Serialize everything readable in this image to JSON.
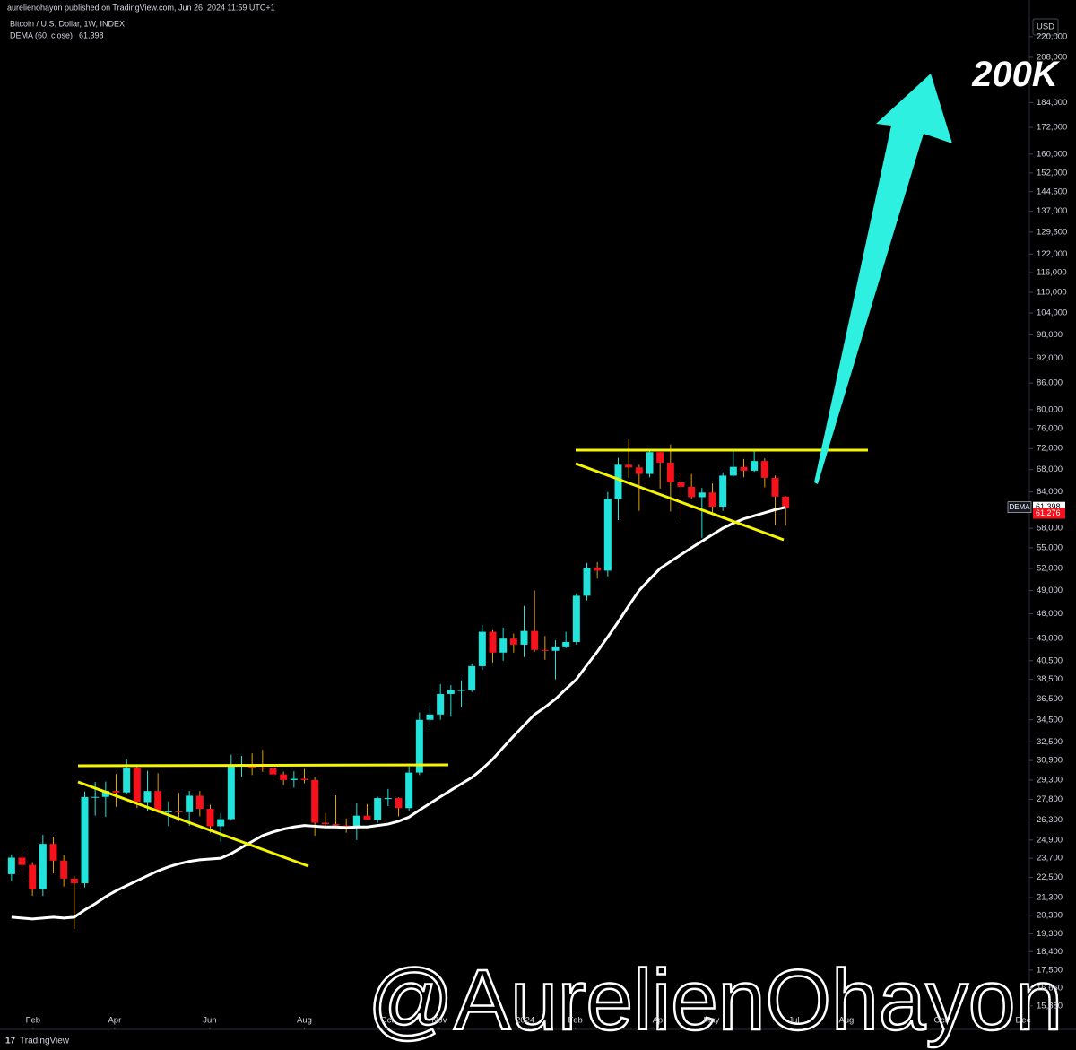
{
  "chart_data": {
    "type": "candlestick",
    "publisher": "aurelienohayon published on TradingView.com, Jun 26, 2024 11:59 UTC+1",
    "symbol": "Bitcoin / U.S. Dollar, 1W, INDEX",
    "indicator": "DEMA (60, close)",
    "currency": "USD",
    "annotation": "200K",
    "watermark": "@AurelienOhayon",
    "brand": "TradingView",
    "log_scale": true,
    "grid": false,
    "up_color": "#22e3dc",
    "down_color": "#f5121c",
    "ylim": [
      14900,
      243000
    ],
    "xlim": [
      -1.1,
      97.3
    ],
    "yticks": [
      {
        "value": 220000,
        "label": "220,000"
      },
      {
        "value": 208000,
        "label": "208,000"
      },
      {
        "value": 184000,
        "label": "184,000"
      },
      {
        "value": 172000,
        "label": "172,000"
      },
      {
        "value": 160000,
        "label": "160,000"
      },
      {
        "value": 152000,
        "label": "152,000"
      },
      {
        "value": 144500,
        "label": "144,500"
      },
      {
        "value": 137000,
        "label": "137,000"
      },
      {
        "value": 129500,
        "label": "129,500"
      },
      {
        "value": 122000,
        "label": "122,000"
      },
      {
        "value": 116000,
        "label": "116,000"
      },
      {
        "value": 110000,
        "label": "110,000"
      },
      {
        "value": 104000,
        "label": "104,000"
      },
      {
        "value": 98000,
        "label": "98,000"
      },
      {
        "value": 92000,
        "label": "92,000"
      },
      {
        "value": 86000,
        "label": "86,000"
      },
      {
        "value": 80000,
        "label": "80,000"
      },
      {
        "value": 76000,
        "label": "76,000"
      },
      {
        "value": 72000,
        "label": "72,000"
      },
      {
        "value": 68000,
        "label": "68,000"
      },
      {
        "value": 64000,
        "label": "64,000"
      },
      {
        "value": 58000,
        "label": "58,000"
      },
      {
        "value": 55000,
        "label": "55,000"
      },
      {
        "value": 52000,
        "label": "52,000"
      },
      {
        "value": 49000,
        "label": "49,000"
      },
      {
        "value": 46000,
        "label": "46,000"
      },
      {
        "value": 43000,
        "label": "43,000"
      },
      {
        "value": 40500,
        "label": "40,500"
      },
      {
        "value": 38500,
        "label": "38,500"
      },
      {
        "value": 36500,
        "label": "36,500"
      },
      {
        "value": 34500,
        "label": "34,500"
      },
      {
        "value": 32500,
        "label": "32,500"
      },
      {
        "value": 30900,
        "label": "30,900"
      },
      {
        "value": 29300,
        "label": "29,300"
      },
      {
        "value": 27800,
        "label": "27,800"
      },
      {
        "value": 26300,
        "label": "26,300"
      },
      {
        "value": 24900,
        "label": "24,900"
      },
      {
        "value": 23700,
        "label": "23,700"
      },
      {
        "value": 22500,
        "label": "22,500"
      },
      {
        "value": 21300,
        "label": "21,300"
      },
      {
        "value": 20300,
        "label": "20,300"
      },
      {
        "value": 19300,
        "label": "19,300"
      },
      {
        "value": 18400,
        "label": "18,400"
      },
      {
        "value": 17500,
        "label": "17,500"
      },
      {
        "value": 16660,
        "label": "16,660"
      },
      {
        "value": 15880,
        "label": "15,880"
      }
    ],
    "xticks": [
      {
        "value": 2.06,
        "label": "Feb"
      },
      {
        "value": 9.86,
        "label": "Apr"
      },
      {
        "value": 18.95,
        "label": "Jun"
      },
      {
        "value": 28.0,
        "label": "Aug"
      },
      {
        "value": 35.9,
        "label": "Oct"
      },
      {
        "value": 40.9,
        "label": "Nov"
      },
      {
        "value": 49.1,
        "label": "2024"
      },
      {
        "value": 53.9,
        "label": "Feb"
      },
      {
        "value": 61.9,
        "label": "Apr"
      },
      {
        "value": 66.9,
        "label": "May"
      },
      {
        "value": 74.8,
        "label": "Jul"
      },
      {
        "value": 79.8,
        "label": "Aug"
      },
      {
        "value": 88.8,
        "label": "Oct"
      },
      {
        "value": 96.7,
        "label": "Dec"
      }
    ],
    "open": [
      22700,
      23740,
      23270,
      21780,
      24640,
      23550,
      22430,
      22150,
      27980,
      27990,
      28450,
      28330,
      30300,
      27600,
      28440,
      26900,
      26900,
      26850,
      28080,
      27100,
      25850,
      26350,
      30500,
      30600,
      30300,
      30250,
      29750,
      29300,
      29400,
      29300,
      26100,
      26000,
      25900,
      25800,
      26600,
      26300,
      27900,
      27900,
      27150,
      29900,
      34500,
      35000,
      37000,
      37400,
      37400,
      39900,
      43800,
      41400,
      43000,
      42300,
      43900,
      41700,
      41600,
      42000,
      42600,
      48300,
      52100,
      51700,
      62800,
      68900,
      68400,
      67200,
      71300,
      69300,
      65700,
      64900,
      63100,
      63900,
      61500,
      66900,
      68500,
      67800,
      69600,
      66500,
      63200
    ],
    "high": [
      23950,
      24250,
      23450,
      25250,
      25130,
      23890,
      22600,
      28400,
      29150,
      29180,
      29780,
      31000,
      30480,
      30040,
      29850,
      27650,
      28300,
      28450,
      28440,
      27400,
      26800,
      31400,
      31280,
      31500,
      31800,
      30450,
      29980,
      30000,
      30200,
      29500,
      26800,
      28100,
      26400,
      27500,
      27450,
      28000,
      28600,
      27950,
      30400,
      35200,
      35900,
      38000,
      37900,
      38400,
      40200,
      44600,
      44000,
      44300,
      43600,
      47000,
      49000,
      43300,
      42800,
      43800,
      48600,
      52800,
      52900,
      64000,
      70200,
      73800,
      68900,
      71700,
      71300,
      72800,
      67200,
      67200,
      64700,
      65500,
      67500,
      71900,
      70000,
      71900,
      70100,
      66900,
      63300
    ],
    "low": [
      22300,
      22500,
      21400,
      21400,
      22750,
      21950,
      19570,
      21900,
      26600,
      26520,
      27250,
      28180,
      27150,
      26960,
      26800,
      25870,
      26200,
      25880,
      26550,
      25400,
      24800,
      26250,
      29550,
      29700,
      29960,
      29550,
      28900,
      28700,
      29050,
      25200,
      25800,
      25700,
      25400,
      24900,
      26400,
      26100,
      27300,
      26550,
      26950,
      29700,
      34000,
      34500,
      34800,
      35700,
      37200,
      39500,
      40300,
      40500,
      41400,
      40900,
      41500,
      40600,
      38500,
      41900,
      42300,
      47700,
      50600,
      50900,
      59300,
      66500,
      60800,
      66600,
      64600,
      60700,
      59700,
      62800,
      56500,
      60300,
      60800,
      66700,
      66600,
      67600,
      64800,
      58500,
      58400
    ],
    "close": [
      23740,
      23270,
      21780,
      24640,
      23550,
      22430,
      22150,
      27980,
      27990,
      28450,
      28330,
      30300,
      27600,
      28440,
      26900,
      26900,
      26850,
      28080,
      27100,
      25850,
      26350,
      30500,
      30600,
      30300,
      30250,
      29750,
      29300,
      29400,
      29300,
      26100,
      26000,
      25900,
      25800,
      26600,
      26300,
      27900,
      27900,
      27150,
      29900,
      34500,
      35000,
      37000,
      37400,
      37400,
      39900,
      43800,
      41400,
      43000,
      42300,
      43900,
      41700,
      41600,
      42000,
      42600,
      48300,
      52100,
      51700,
      62800,
      68900,
      68400,
      67200,
      71300,
      69300,
      65700,
      64900,
      63100,
      63900,
      61500,
      66900,
      68500,
      67800,
      69600,
      66500,
      63200,
      61276
    ],
    "close_label": "61,276",
    "dema": {
      "name": "DEMA",
      "color": "#ffffff",
      "last_label": "61,398",
      "values": [
        20200,
        20150,
        20100,
        20150,
        20200,
        20150,
        20200,
        20600,
        20950,
        21350,
        21700,
        22000,
        22300,
        22600,
        22900,
        23150,
        23350,
        23500,
        23600,
        23650,
        23700,
        24000,
        24400,
        24800,
        25200,
        25450,
        25650,
        25800,
        25900,
        25850,
        25800,
        25800,
        25750,
        25800,
        25800,
        25900,
        26000,
        26200,
        26500,
        27000,
        27500,
        28000,
        28500,
        29000,
        29500,
        30200,
        31000,
        32000,
        33000,
        34000,
        35000,
        35700,
        36500,
        37500,
        38500,
        40000,
        41500,
        43200,
        45000,
        47000,
        49000,
        50500,
        52000,
        53000,
        54000,
        55000,
        56000,
        57000,
        58000,
        58800,
        59500,
        60000,
        60500,
        61000,
        61398
      ]
    }
  }
}
